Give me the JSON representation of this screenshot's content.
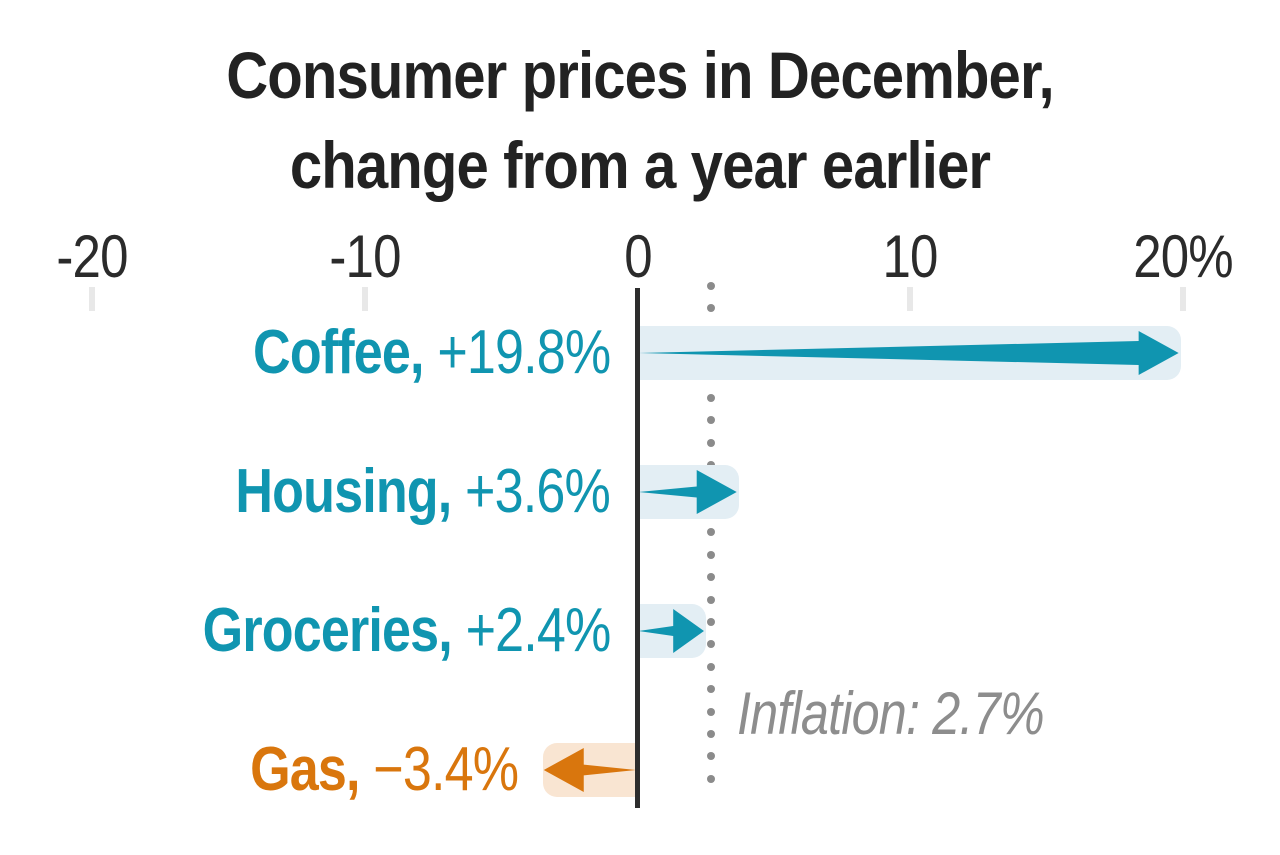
{
  "title": {
    "line1": "Consumer prices in December,",
    "line2": "change from a year earlier"
  },
  "colors": {
    "positive": "#1095b0",
    "positive_band": "#e3eef4",
    "negative": "#d9760d",
    "negative_band": "#f9e5d2",
    "title": "#222222",
    "axis_label": "#2b2b2b",
    "tick": "#e8e8e8",
    "axis_line": "#2d2d2d",
    "dots": "#8b8b8b",
    "annotation": "#8d8d8d"
  },
  "chart_data": {
    "type": "bar",
    "orientation": "horizontal",
    "style": "tapered-arrows",
    "title": "Consumer prices in December, change from a year earlier",
    "categories": [
      "Coffee",
      "Housing",
      "Groceries",
      "Gas"
    ],
    "values": [
      19.8,
      3.6,
      2.4,
      -3.4
    ],
    "category_labels": [
      "Coffee,",
      "Housing,",
      "Groceries,",
      "Gas,"
    ],
    "value_labels": [
      "+19.8%",
      "+3.6%",
      "+2.4%",
      "−3.4%"
    ],
    "x_ticks": [
      -20,
      -10,
      0,
      10,
      20
    ],
    "x_tick_labels": [
      "-20",
      "-10",
      "0",
      "10",
      "20%"
    ],
    "xlim": [
      -22,
      22
    ],
    "grid": false,
    "legend": false,
    "reference_line": {
      "value": 2.7,
      "label": "Inflation: 2.7%",
      "style": "dotted"
    }
  }
}
